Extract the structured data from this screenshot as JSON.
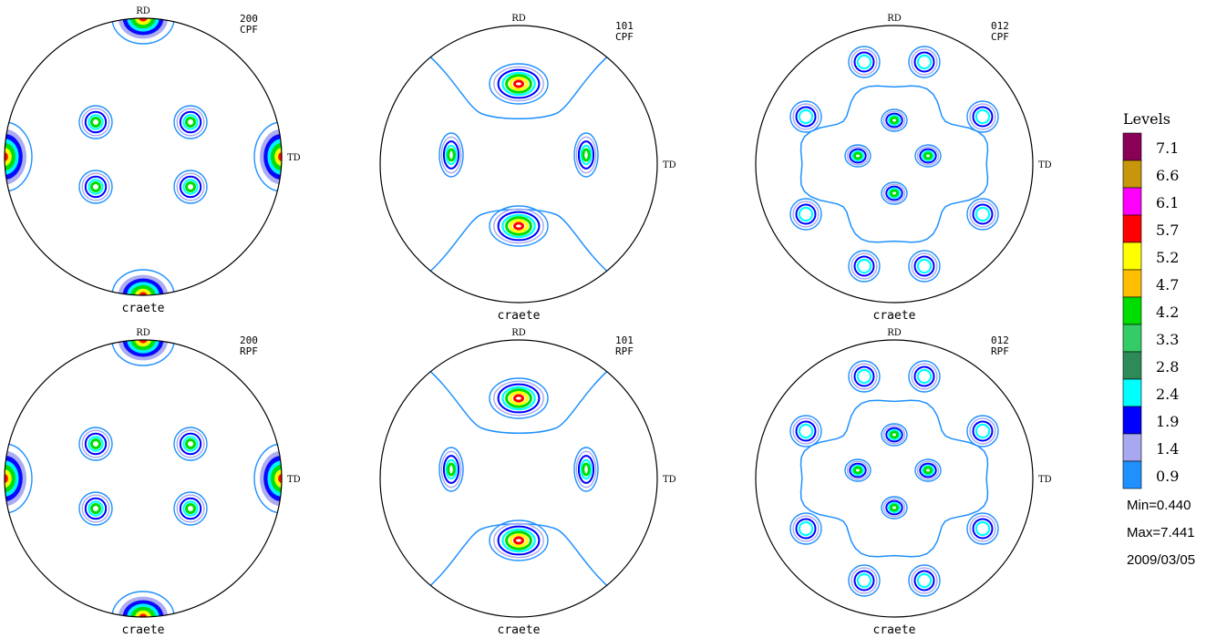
{
  "figures": [
    {
      "id": "cpf-200",
      "plane": "200",
      "kind": "CPF",
      "sample": "craete",
      "rd": "RD",
      "td": "TD",
      "pattern": "p200"
    },
    {
      "id": "cpf-101",
      "plane": "101",
      "kind": "CPF",
      "sample": "craete",
      "rd": "RD",
      "td": "TD",
      "pattern": "p101"
    },
    {
      "id": "cpf-012",
      "plane": "012",
      "kind": "CPF",
      "sample": "craete",
      "rd": "RD",
      "td": "TD",
      "pattern": "p012"
    },
    {
      "id": "rpf-200",
      "plane": "200",
      "kind": "RPF",
      "sample": "craete",
      "rd": "RD",
      "td": "TD",
      "pattern": "p200"
    },
    {
      "id": "rpf-101",
      "plane": "101",
      "kind": "RPF",
      "sample": "craete",
      "rd": "RD",
      "td": "TD",
      "pattern": "p101"
    },
    {
      "id": "rpf-012",
      "plane": "012",
      "kind": "RPF",
      "sample": "craete",
      "rd": "RD",
      "td": "TD",
      "pattern": "p012"
    }
  ],
  "legend": {
    "title": "Levels",
    "levels": [
      {
        "value": "7.1",
        "color": "#8B0057"
      },
      {
        "value": "6.6",
        "color": "#C8960A"
      },
      {
        "value": "6.1",
        "color": "#FF00FF"
      },
      {
        "value": "5.7",
        "color": "#FF0000"
      },
      {
        "value": "5.2",
        "color": "#FFFF00"
      },
      {
        "value": "4.7",
        "color": "#FFBF00"
      },
      {
        "value": "4.2",
        "color": "#00DD00"
      },
      {
        "value": "3.3",
        "color": "#33CC66"
      },
      {
        "value": "2.8",
        "color": "#2E8B57"
      },
      {
        "value": "2.4",
        "color": "#00FFFF"
      },
      {
        "value": "1.9",
        "color": "#0000FF"
      },
      {
        "value": "1.4",
        "color": "#A8A8F0"
      },
      {
        "value": "0.9",
        "color": "#1E90FF"
      }
    ],
    "min_label": "Min=0.440",
    "max_label": "Max=7.441",
    "date": "2009/03/05"
  },
  "colors": {
    "outline": "#000000",
    "contour_low": "#1E90FF",
    "contour_lav": "#A8A8F0",
    "contour_blue": "#0000FF",
    "contour_cyan": "#00FFFF",
    "contour_green": "#00DD00",
    "contour_yellow": "#FFFF00",
    "contour_red": "#FF0000"
  }
}
